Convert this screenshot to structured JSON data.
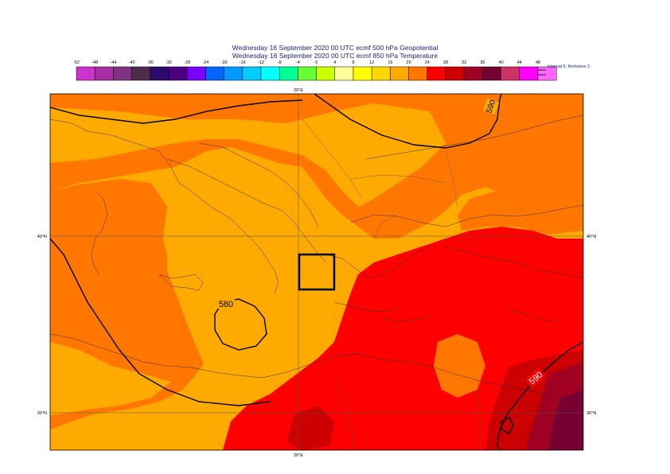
{
  "title_line1": "Wednesday 16 September 2020 00 UTC ecmf 500 hPa  Geopotential",
  "title_line2": "Wednesday 16 September 2020 00 UTC ecmf 850 hPa  Temperature",
  "legend": {
    "ticks": [
      "-52",
      "-48",
      "-44",
      "-40",
      "-36",
      "-32",
      "-28",
      "-24",
      "-20",
      "-16",
      "-12",
      "-8",
      "-4",
      "0",
      "4",
      "8",
      "12",
      "16",
      "20",
      "24",
      "28",
      "32",
      "36",
      "40",
      "44",
      "48"
    ],
    "colors": [
      "#cc33cc",
      "#a62fa6",
      "#803380",
      "#4d2d4d",
      "#2b0a6b",
      "#4b0082",
      "#7b00ff",
      "#0066ff",
      "#0099ff",
      "#00ccff",
      "#00ffff",
      "#00ff99",
      "#66ff33",
      "#ccff00",
      "#ffff99",
      "#ffff00",
      "#ffd700",
      "#ffaa00",
      "#ff7700",
      "#ff0000",
      "#cc0000",
      "#a00022",
      "#770033",
      "#cc3366",
      "#ff00ff",
      "#ff66ff"
    ],
    "note": "Interval 5, thickness 2"
  },
  "axis_labels": {
    "lon_top": "20°E",
    "lon_bottom": "20°E",
    "lat_40_left": "40°N",
    "lat_40_right": "40°N",
    "lat_30_left": "30°N",
    "lat_30_right": "30°N"
  },
  "contour_labels": {
    "c590_north": "590",
    "c580": "580",
    "c590_south": "590"
  }
}
